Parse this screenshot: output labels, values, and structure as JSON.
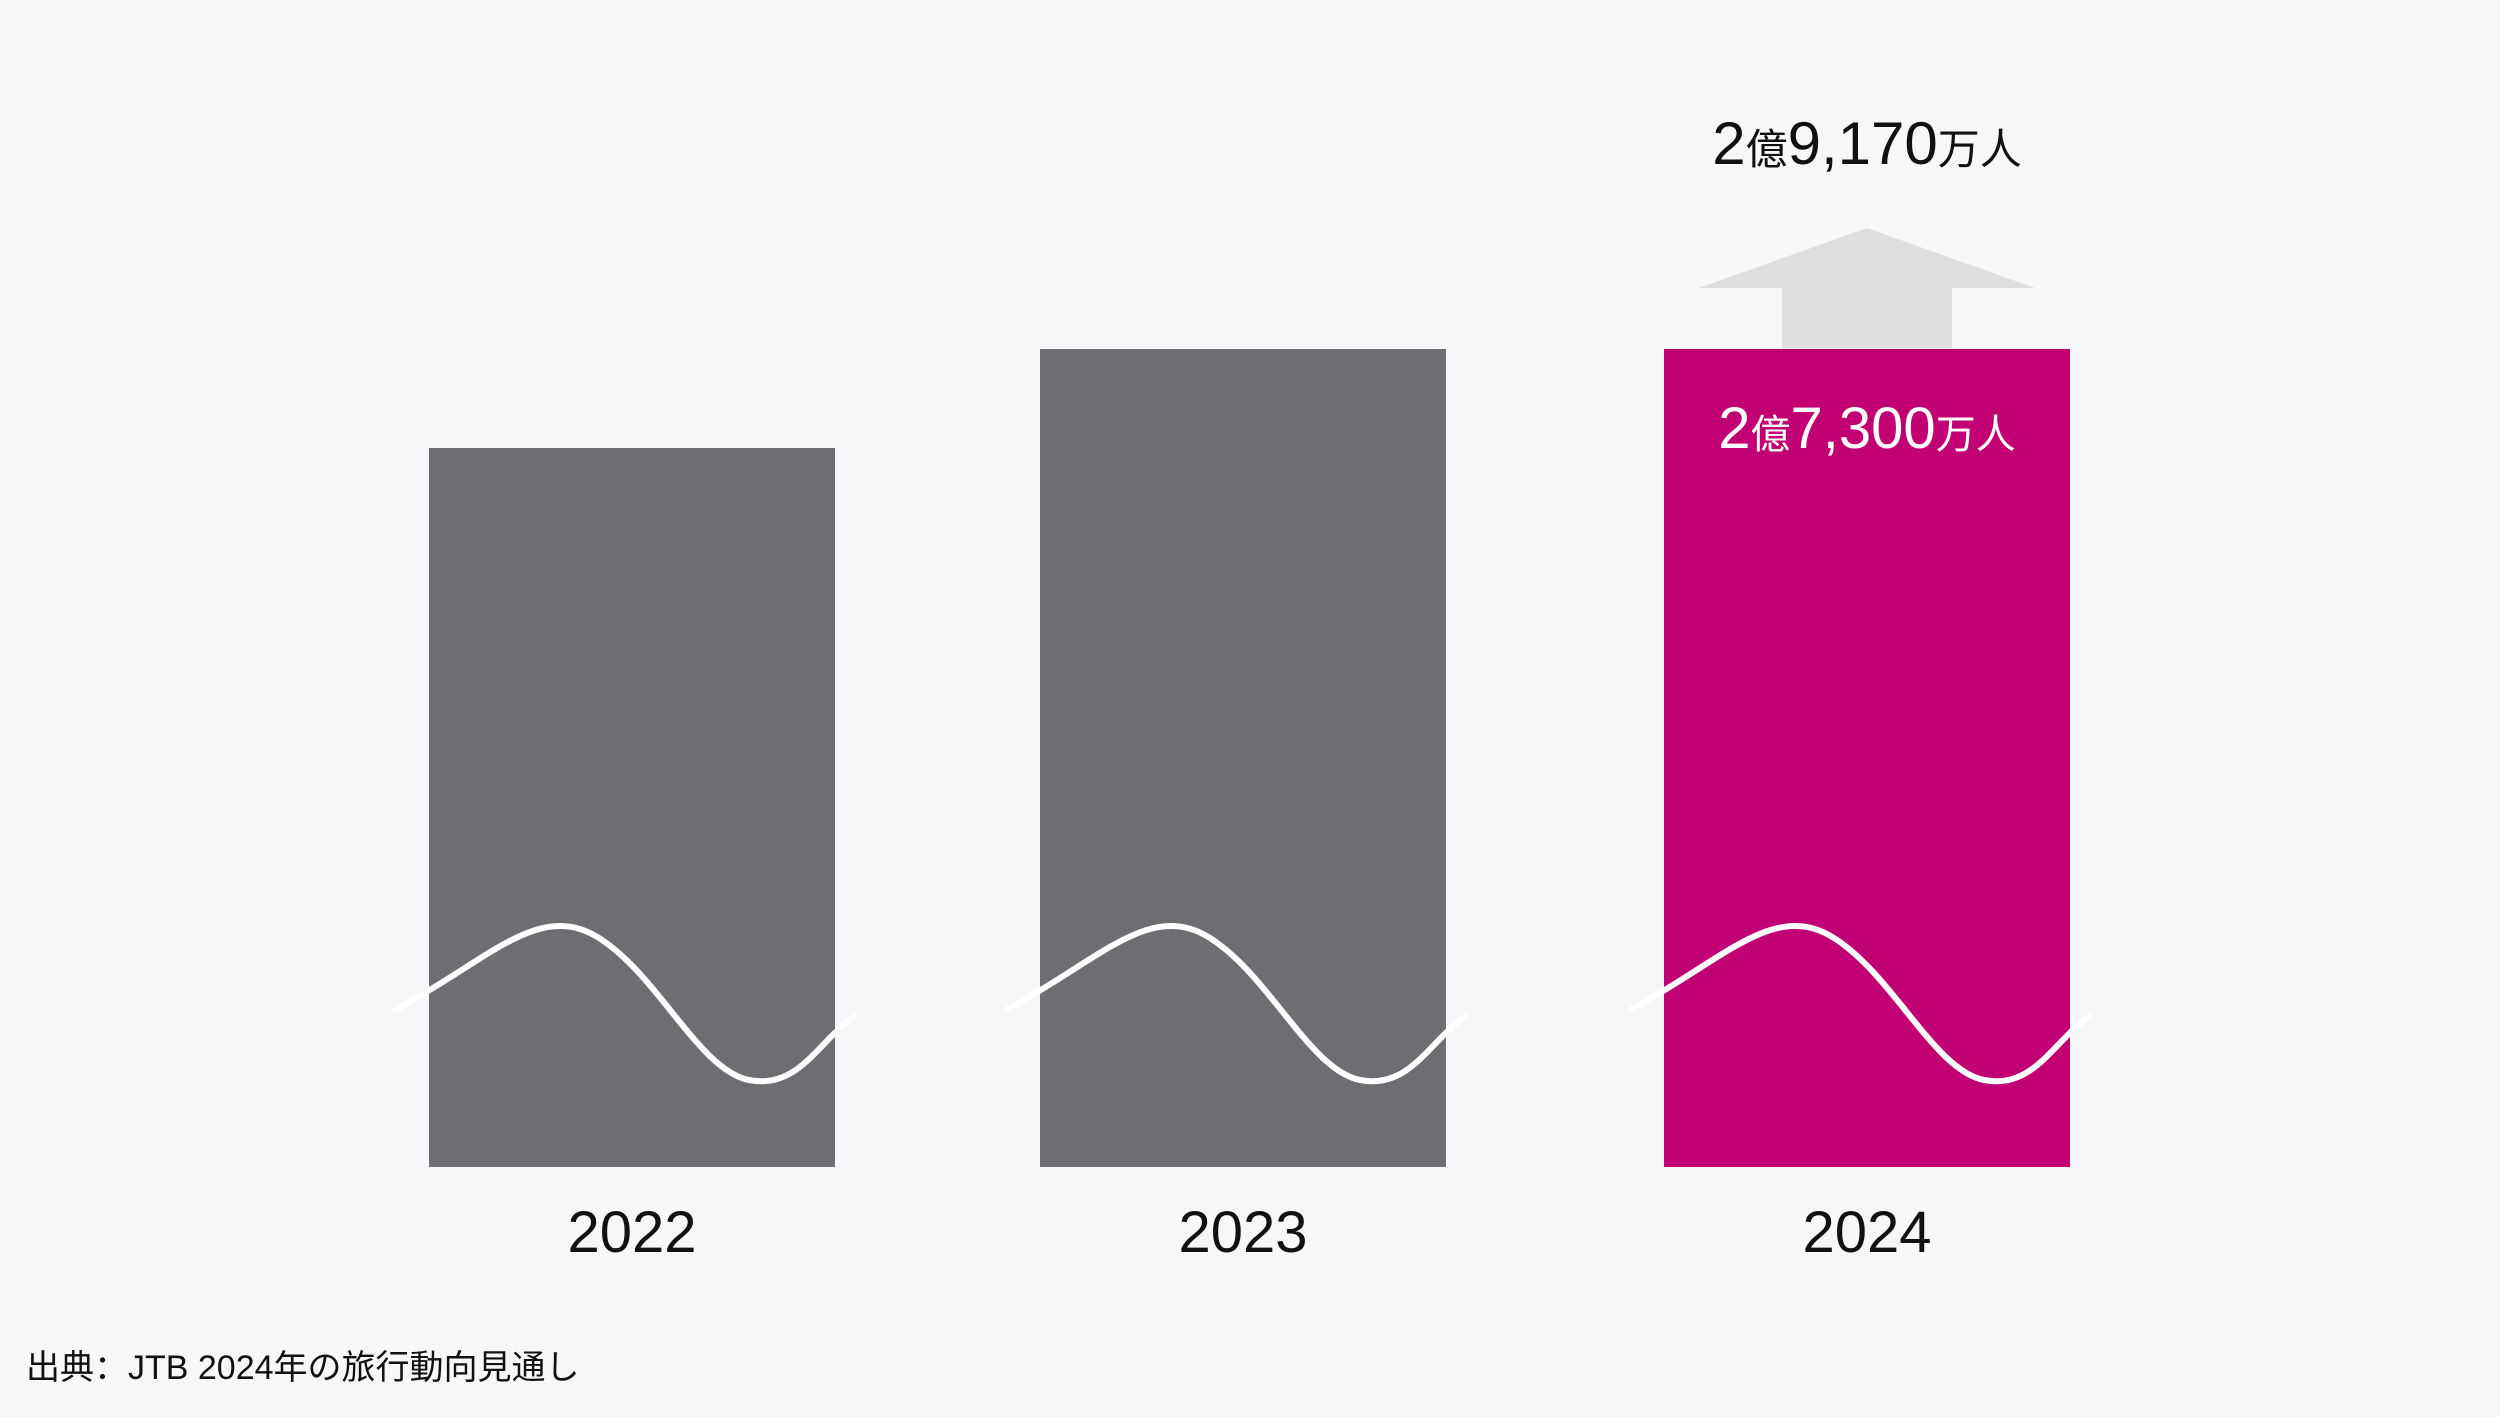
{
  "chart_data": {
    "type": "bar",
    "categories": [
      "2022",
      "2023",
      "2024"
    ],
    "values": [
      null,
      null,
      273000000
    ],
    "projection": {
      "category": "2024",
      "value": 291700000,
      "label": {
        "num1": "2",
        "unit1": "億",
        "num2": "9,170",
        "unit2": "万人"
      }
    },
    "data_labels": [
      null,
      null,
      {
        "num1": "2",
        "unit1": "億",
        "num2": "7,300",
        "unit2": "万人"
      }
    ],
    "axis_broken": true,
    "grid": false,
    "title": "",
    "xlabel": "",
    "ylabel": ""
  },
  "colors": {
    "background": "#f7f7f9",
    "bar_default": "#6e6e72",
    "bar_highlight": "#c10074",
    "arrow": "#dfdfe2",
    "break_line": "#ffffff",
    "text": "#111111"
  },
  "source": "出典：JTB 2024年の旅行動向見通し"
}
